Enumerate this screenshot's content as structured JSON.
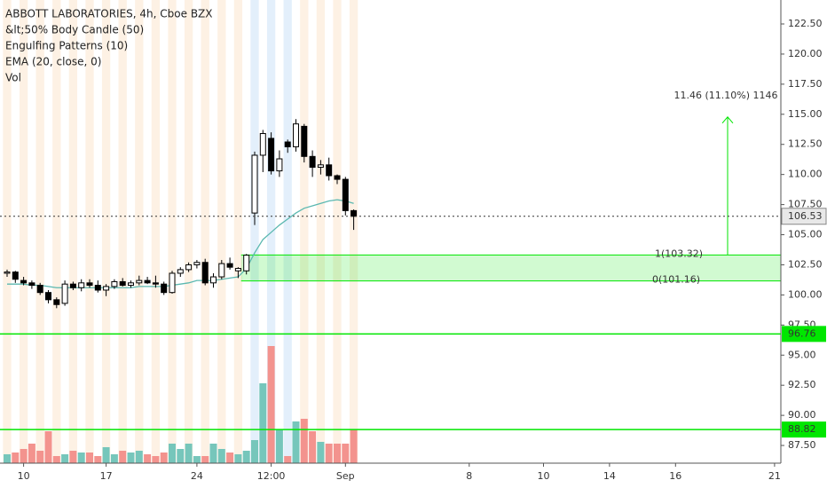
{
  "chart_data": {
    "type": "candlestick",
    "title": "ABBOTT LABORATORIES, 4h, Cboe BZX",
    "indicators": [
      "&lt;50% Body Candle (50)",
      "Engulfing Patterns (10)",
      "EMA (20, close, 0)",
      "Vol"
    ],
    "categories": [
      null,
      null,
      "10",
      null,
      null,
      null,
      null,
      null,
      null,
      null,
      null,
      null,
      "17",
      null,
      null,
      null,
      null,
      null,
      null,
      null,
      null,
      null,
      null,
      "24",
      null,
      null,
      null,
      null,
      null,
      null,
      null,
      null,
      "12:00",
      null,
      null,
      null,
      null,
      null,
      null,
      null,
      null,
      "Sep",
      null,
      null,
      null,
      null,
      null,
      null,
      null,
      null,
      null,
      null,
      null,
      null,
      null,
      null,
      "8",
      null,
      null,
      null,
      null,
      null,
      null,
      null,
      null,
      "10",
      null,
      null,
      null,
      null,
      null,
      null,
      null,
      "14",
      null,
      null,
      null,
      null,
      null,
      null,
      null,
      "16",
      null,
      null,
      null,
      null,
      null,
      null,
      null,
      null,
      null,
      null,
      null,
      "21"
    ],
    "open": [
      101.8,
      101.9,
      101.2,
      101.0,
      100.8,
      100.2,
      99.6,
      99.3,
      100.9,
      100.6,
      101.0,
      100.8,
      100.4,
      100.7,
      101.1,
      100.8,
      101.0,
      101.2,
      101.0,
      100.9,
      100.2,
      101.8,
      102.1,
      102.5,
      102.7,
      101.0,
      101.5,
      102.6,
      102.0,
      102.0,
      106.8,
      111.6,
      113.0,
      110.3,
      112.7,
      112.3,
      114.0,
      111.5,
      110.6,
      110.8,
      109.9,
      109.6,
      107.0,
      null,
      null,
      null,
      null,
      null,
      null,
      null,
      null,
      null,
      null,
      null,
      null,
      null,
      null,
      null,
      null,
      null,
      null,
      null,
      null,
      null,
      null,
      null,
      null,
      null,
      null,
      null,
      null,
      null,
      null,
      null,
      null,
      null,
      null,
      null,
      null,
      null,
      null,
      null,
      null,
      null,
      null,
      null,
      null,
      null,
      null,
      null,
      null,
      null,
      null,
      null
    ],
    "high": [
      102.1,
      102.0,
      101.5,
      101.2,
      101.0,
      100.4,
      99.8,
      101.2,
      101.1,
      101.3,
      101.3,
      101.2,
      100.9,
      101.3,
      101.4,
      101.2,
      101.6,
      101.5,
      101.6,
      101.1,
      102.0,
      102.3,
      102.7,
      102.9,
      103.0,
      101.8,
      102.9,
      103.1,
      102.3,
      103.4,
      111.9,
      113.7,
      113.5,
      112.0,
      112.9,
      114.6,
      114.2,
      112.0,
      111.2,
      111.4,
      110.0,
      109.8,
      107.1,
      null,
      null,
      null,
      null,
      null,
      null,
      null,
      null,
      null,
      null,
      null,
      null,
      null,
      null,
      null,
      null,
      null,
      null,
      null,
      null,
      null,
      null,
      null,
      null,
      null,
      null,
      null,
      null,
      null,
      null,
      null,
      null,
      null,
      null,
      null,
      null,
      null,
      null,
      null,
      null,
      null,
      null,
      null,
      null,
      null,
      null,
      null,
      null,
      null,
      null,
      null
    ],
    "low": [
      101.5,
      101.0,
      100.8,
      100.5,
      100.0,
      99.3,
      98.9,
      99.1,
      100.4,
      100.3,
      100.6,
      100.2,
      99.9,
      100.5,
      100.7,
      100.6,
      100.8,
      100.9,
      100.6,
      100.0,
      100.1,
      101.5,
      101.9,
      102.2,
      100.8,
      100.6,
      101.3,
      102.1,
      101.4,
      101.7,
      105.8,
      110.2,
      110.0,
      109.8,
      111.8,
      111.9,
      111.0,
      109.8,
      110.0,
      109.5,
      109.2,
      106.6,
      105.4,
      null,
      null,
      null,
      null,
      null,
      null,
      null,
      null,
      null,
      null,
      null,
      null,
      null,
      null,
      null,
      null,
      null,
      null,
      null,
      null,
      null,
      null,
      null,
      null,
      null,
      null,
      null,
      null,
      null,
      null,
      null,
      null,
      null,
      null,
      null,
      null,
      null,
      null,
      null,
      null,
      null,
      null,
      null,
      null,
      null,
      null,
      null,
      null,
      null,
      null,
      null
    ],
    "close": [
      101.9,
      101.3,
      101.0,
      100.8,
      100.2,
      99.6,
      99.2,
      100.9,
      100.6,
      101.0,
      100.8,
      100.4,
      100.7,
      101.1,
      100.8,
      101.0,
      101.2,
      101.0,
      100.9,
      100.2,
      101.8,
      102.1,
      102.5,
      102.7,
      101.0,
      101.5,
      102.6,
      102.3,
      102.2,
      103.3,
      111.6,
      113.4,
      110.3,
      111.3,
      112.3,
      114.2,
      111.5,
      110.6,
      110.8,
      109.9,
      109.6,
      107.0,
      106.53,
      null,
      null,
      null,
      null,
      null,
      null,
      null,
      null,
      null,
      null,
      null,
      null,
      null,
      null,
      null,
      null,
      null,
      null,
      null,
      null,
      null,
      null,
      null,
      null,
      null,
      null,
      null,
      null,
      null,
      null,
      null,
      null,
      null,
      null,
      null,
      null,
      null,
      null,
      null,
      null,
      null,
      null,
      null,
      null,
      null,
      null,
      null,
      null,
      null,
      null,
      null
    ],
    "ema": [
      100.9,
      100.9,
      100.9,
      100.8,
      100.8,
      100.7,
      100.6,
      100.6,
      100.6,
      100.6,
      100.6,
      100.6,
      100.6,
      100.6,
      100.6,
      100.6,
      100.7,
      100.7,
      100.7,
      100.7,
      100.8,
      100.9,
      101.0,
      101.2,
      101.2,
      101.2,
      101.3,
      101.4,
      101.5,
      102.2,
      103.5,
      104.6,
      105.2,
      105.8,
      106.3,
      106.8,
      107.2,
      107.4,
      107.6,
      107.8,
      107.9,
      107.8,
      107.6,
      null,
      null,
      null,
      null,
      null,
      null,
      null,
      null,
      null,
      null,
      null,
      null,
      null,
      null,
      null,
      null,
      null,
      null,
      null,
      null,
      null,
      null,
      null,
      null,
      null,
      null,
      null,
      null,
      null,
      null,
      null,
      null,
      null,
      null,
      null,
      null,
      null,
      null,
      null,
      null,
      null,
      null,
      null,
      null,
      null,
      null,
      null,
      null,
      null,
      null,
      null
    ],
    "volume": [
      10,
      12,
      16,
      22,
      14,
      36,
      8,
      10,
      14,
      12,
      12,
      8,
      18,
      10,
      14,
      12,
      14,
      10,
      8,
      12,
      22,
      16,
      22,
      8,
      8,
      22,
      16,
      12,
      10,
      14,
      26,
      90,
      132,
      38,
      8,
      47,
      50,
      36,
      24,
      22,
      22,
      22,
      38,
      null,
      null,
      null,
      null,
      null,
      null,
      null,
      null,
      null,
      null,
      null,
      null,
      null,
      null,
      null,
      null,
      null,
      null,
      null,
      null,
      null,
      null,
      null,
      null,
      null,
      null,
      null,
      null,
      null,
      null,
      null,
      null,
      null,
      null,
      null,
      null,
      null,
      null,
      null,
      null,
      null,
      null,
      null,
      null,
      null,
      null,
      null,
      null,
      null,
      null,
      null
    ],
    "up_color": "#ffffff",
    "down_color": "#000000",
    "volume_up_color": "#76c6bb",
    "volume_down_color": "#f3938e",
    "ema_color": "#5bb8b0",
    "ylim": [
      86.03,
      124.49
    ],
    "yticks": [
      {
        "value": 87.5,
        "label": "87.50"
      },
      {
        "value": 90,
        "label": "90.00"
      },
      {
        "value": 92.5,
        "label": "92.50"
      },
      {
        "value": 95,
        "label": "95.00"
      },
      {
        "value": 97.5,
        "label": "97.50"
      },
      {
        "value": 100,
        "label": "100.00"
      },
      {
        "value": 102.5,
        "label": "102.50"
      },
      {
        "value": 105,
        "label": "105.00"
      },
      {
        "value": 107.5,
        "label": "107.50"
      },
      {
        "value": 110,
        "label": "110.00"
      },
      {
        "value": 112.5,
        "label": "112.50"
      },
      {
        "value": 115,
        "label": "115.00"
      },
      {
        "value": 117.5,
        "label": "117.50"
      },
      {
        "value": 120,
        "label": "120.00"
      },
      {
        "value": 122.5,
        "label": "122.50"
      }
    ],
    "last_price": 106.53,
    "levels": [
      96.76,
      88.82
    ],
    "level_color": "#00e600",
    "fib_levels": [
      {
        "value": 103.32,
        "label": "1(103.32)"
      },
      {
        "value": 101.16,
        "label": "0(101.16)"
      }
    ],
    "measure": {
      "top": 114.78,
      "label": "11.46 (11.10%) 1146"
    }
  }
}
